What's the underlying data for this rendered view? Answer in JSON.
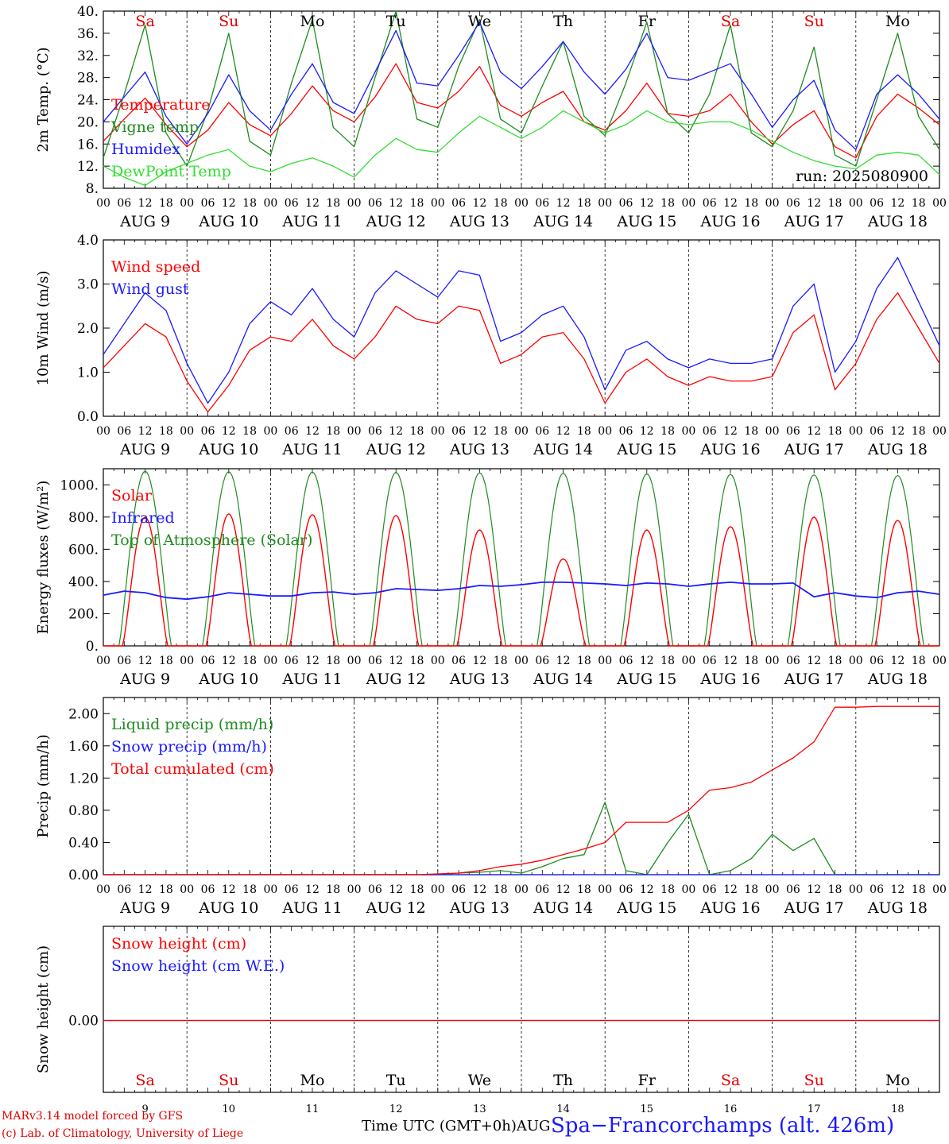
{
  "run": "run: 2025080900",
  "x_axis": {
    "hour_ticks": [
      "00",
      "06",
      "12",
      "18"
    ],
    "end_tick": "00",
    "date_labels": [
      "AUG  9",
      "AUG 10",
      "AUG 11",
      "AUG 12",
      "AUG 13",
      "AUG 14",
      "AUG 15",
      "AUG 16",
      "AUG 17",
      "AUG 18"
    ],
    "days": [
      {
        "label": "Sa",
        "color": "#e00000",
        "num": "9"
      },
      {
        "label": "Su",
        "color": "#e00000",
        "num": "10"
      },
      {
        "label": "Mo",
        "color": "#000000",
        "num": "11"
      },
      {
        "label": "Tu",
        "color": "#000000",
        "num": "12"
      },
      {
        "label": "We",
        "color": "#000000",
        "num": "13"
      },
      {
        "label": "Th",
        "color": "#000000",
        "num": "14"
      },
      {
        "label": "Fr",
        "color": "#000000",
        "num": "15"
      },
      {
        "label": "Sa",
        "color": "#e00000",
        "num": "16"
      },
      {
        "label": "Su",
        "color": "#e00000",
        "num": "17"
      },
      {
        "label": "Mo",
        "color": "#000000",
        "num": "18"
      }
    ],
    "time_label": "Time UTC (GMT+0h)AUG"
  },
  "colors": {
    "red": "#ff0000",
    "green": "#1e8c1e",
    "blue": "#1a1aff",
    "light_green": "#33dd33"
  },
  "chart_data": [
    {
      "type": "line",
      "ylabel": "2m Temp. (°C)",
      "ylim": [
        8,
        40
      ],
      "yticks": [
        "8.",
        "12.",
        "16.",
        "20.",
        "24.",
        "28.",
        "32.",
        "36.",
        "40."
      ],
      "x": [
        0,
        6,
        12,
        18,
        24,
        30,
        36,
        42,
        48,
        54,
        60,
        66,
        72,
        78,
        84,
        90,
        96,
        102,
        108,
        114,
        120,
        126,
        132,
        138,
        144,
        150,
        156,
        162,
        168,
        174,
        180,
        186,
        192,
        198,
        204,
        210,
        216,
        222,
        228,
        234,
        240
      ],
      "series": [
        {
          "name": "Temperature",
          "color": "#ff0000",
          "values": [
            16.5,
            20.5,
            24.3,
            19.5,
            15.5,
            18.5,
            23.5,
            19.5,
            17.5,
            21.5,
            26.5,
            22.0,
            20.0,
            24.5,
            30.5,
            23.5,
            22.5,
            25.5,
            30.0,
            23.0,
            21.0,
            23.5,
            25.5,
            20.0,
            18.5,
            22.0,
            27.0,
            21.5,
            21.0,
            22.0,
            25.0,
            20.0,
            16.0,
            19.5,
            22.0,
            15.5,
            13.5,
            21.0,
            25.0,
            22.5,
            19.5
          ]
        },
        {
          "name": "Vigne temp",
          "color": "#1e8c1e",
          "values": [
            13.5,
            25.0,
            37.5,
            18.0,
            12.0,
            22.0,
            36.0,
            16.5,
            14.0,
            27.0,
            38.5,
            19.0,
            15.5,
            28.0,
            40.0,
            20.5,
            19.0,
            30.0,
            38.5,
            20.5,
            18.0,
            26.5,
            34.5,
            21.0,
            17.5,
            27.0,
            38.0,
            21.5,
            18.0,
            25.0,
            37.5,
            18.0,
            15.5,
            22.0,
            33.5,
            14.0,
            12.0,
            24.0,
            36.0,
            21.0,
            15.0
          ]
        },
        {
          "name": "Humidex",
          "color": "#1a1aff",
          "values": [
            20.0,
            24.5,
            29.0,
            21.0,
            16.0,
            21.5,
            28.5,
            22.0,
            18.5,
            25.0,
            30.5,
            23.5,
            21.5,
            29.0,
            36.5,
            27.0,
            26.5,
            32.0,
            38.0,
            29.0,
            26.0,
            30.0,
            34.5,
            29.0,
            25.0,
            29.5,
            36.0,
            28.0,
            27.5,
            29.0,
            30.5,
            25.0,
            19.0,
            24.0,
            27.5,
            18.5,
            15.0,
            25.0,
            28.5,
            25.0,
            20.5
          ]
        },
        {
          "name": "DewPoint Temp",
          "color": "#33dd33",
          "values": [
            12.0,
            10.0,
            8.5,
            11.0,
            12.5,
            14.0,
            15.0,
            12.0,
            11.0,
            12.5,
            13.5,
            12.0,
            10.0,
            14.0,
            17.0,
            15.0,
            14.5,
            18.0,
            21.0,
            19.0,
            17.0,
            19.0,
            22.0,
            20.0,
            18.0,
            19.5,
            22.0,
            20.0,
            19.5,
            20.0,
            20.0,
            18.5,
            16.5,
            14.5,
            13.0,
            12.0,
            11.5,
            14.0,
            14.5,
            14.0,
            10.5
          ]
        }
      ]
    },
    {
      "type": "line",
      "ylabel": "10m Wind (m/s)",
      "ylim": [
        0,
        4
      ],
      "yticks": [
        "0.0",
        "1.0",
        "2.0",
        "3.0",
        "4.0"
      ],
      "x": [
        0,
        6,
        12,
        18,
        24,
        30,
        36,
        42,
        48,
        54,
        60,
        66,
        72,
        78,
        84,
        90,
        96,
        102,
        108,
        114,
        120,
        126,
        132,
        138,
        144,
        150,
        156,
        162,
        168,
        174,
        180,
        186,
        192,
        198,
        204,
        210,
        216,
        222,
        228,
        234,
        240
      ],
      "series": [
        {
          "name": "Wind speed",
          "color": "#ff0000",
          "values": [
            1.1,
            1.6,
            2.1,
            1.8,
            0.8,
            0.1,
            0.7,
            1.5,
            1.8,
            1.7,
            2.2,
            1.6,
            1.3,
            1.8,
            2.5,
            2.2,
            2.1,
            2.5,
            2.4,
            1.2,
            1.4,
            1.8,
            1.9,
            1.3,
            0.3,
            1.0,
            1.3,
            0.9,
            0.7,
            0.9,
            0.8,
            0.8,
            0.9,
            1.9,
            2.3,
            0.6,
            1.2,
            2.2,
            2.8,
            2.0,
            1.2
          ]
        },
        {
          "name": "Wind gust",
          "color": "#1a1aff",
          "values": [
            1.4,
            2.1,
            2.8,
            2.4,
            1.2,
            0.3,
            1.0,
            2.1,
            2.6,
            2.3,
            2.9,
            2.2,
            1.8,
            2.8,
            3.3,
            3.0,
            2.7,
            3.3,
            3.2,
            1.7,
            1.9,
            2.3,
            2.5,
            1.8,
            0.6,
            1.5,
            1.7,
            1.3,
            1.1,
            1.3,
            1.2,
            1.2,
            1.3,
            2.5,
            3.0,
            1.0,
            1.7,
            2.9,
            3.6,
            2.6,
            1.6
          ]
        }
      ]
    },
    {
      "type": "line",
      "ylabel": "Energy fluxes (W/m²)",
      "ylim": [
        0,
        1100
      ],
      "yticks": [
        "0.",
        "200.",
        "400.",
        "600.",
        "800.",
        "1000."
      ],
      "day_peaks": {
        "Top of Atmosphere (Solar)": [
          1085,
          1082,
          1080,
          1078,
          1075,
          1072,
          1068,
          1065,
          1062,
          1058
        ],
        "Solar": [
          800,
          820,
          815,
          810,
          720,
          540,
          720,
          740,
          800,
          780
        ]
      },
      "series": [
        {
          "name": "Solar",
          "color": "#ff0000"
        },
        {
          "name": "Infrared",
          "color": "#1a1aff",
          "values": [
            315,
            340,
            330,
            300,
            290,
            305,
            330,
            320,
            310,
            310,
            330,
            335,
            320,
            330,
            355,
            350,
            345,
            355,
            375,
            370,
            380,
            395,
            395,
            390,
            385,
            375,
            390,
            385,
            370,
            385,
            395,
            385,
            385,
            390,
            305,
            330,
            310,
            300,
            330,
            340,
            320
          ]
        },
        {
          "name": "Top of Atmosphere (Solar)",
          "color": "#1e8c1e"
        }
      ]
    },
    {
      "type": "line",
      "ylabel": "Precip (mm/h)",
      "ylim": [
        0,
        2.2
      ],
      "yticks": [
        "0.00",
        "0.40",
        "0.80",
        "1.20",
        "1.60",
        "2.00"
      ],
      "x": [
        0,
        6,
        12,
        18,
        24,
        30,
        36,
        42,
        48,
        54,
        60,
        66,
        72,
        78,
        84,
        90,
        96,
        102,
        108,
        114,
        120,
        126,
        132,
        138,
        144,
        150,
        156,
        162,
        168,
        174,
        180,
        186,
        192,
        198,
        204,
        210,
        216,
        222,
        228,
        234,
        240
      ],
      "series": [
        {
          "name": "Liquid precip (mm/h)",
          "color": "#1e8c1e",
          "values": [
            0,
            0,
            0,
            0,
            0,
            0,
            0,
            0,
            0,
            0,
            0,
            0,
            0,
            0,
            0,
            0,
            0,
            0.02,
            0.03,
            0.05,
            0.02,
            0.1,
            0.2,
            0.25,
            0.9,
            0.05,
            0,
            0.4,
            0.75,
            0,
            0.05,
            0.2,
            0.5,
            0.3,
            0.45,
            0,
            0,
            0,
            0,
            0,
            0
          ]
        },
        {
          "name": "Snow precip (mm/h)",
          "color": "#1a1aff",
          "values": [
            0,
            0,
            0,
            0,
            0,
            0,
            0,
            0,
            0,
            0,
            0,
            0,
            0,
            0,
            0,
            0,
            0,
            0,
            0,
            0,
            0,
            0,
            0,
            0,
            0,
            0,
            0,
            0,
            0,
            0,
            0,
            0,
            0,
            0,
            0,
            0,
            0,
            0,
            0,
            0,
            0
          ]
        },
        {
          "name": "Total cumulated (cm)",
          "color": "#ff0000",
          "values": [
            0,
            0,
            0,
            0,
            0,
            0,
            0,
            0,
            0,
            0,
            0,
            0,
            0,
            0,
            0,
            0,
            0.01,
            0.02,
            0.05,
            0.1,
            0.13,
            0.18,
            0.25,
            0.32,
            0.4,
            0.65,
            0.65,
            0.65,
            0.8,
            1.05,
            1.08,
            1.15,
            1.3,
            1.45,
            1.65,
            2.08,
            2.08,
            2.09,
            2.09,
            2.09,
            2.09
          ]
        }
      ]
    },
    {
      "type": "line",
      "ylabel": "Snow height (cm)",
      "yticks": [
        "0.00"
      ],
      "series": [
        {
          "name": "Snow height (cm)",
          "color": "#ff0000",
          "values": [
            0,
            0
          ]
        },
        {
          "name": "Snow height (cm W.E.)",
          "color": "#1a1aff",
          "values": [
            0,
            0
          ]
        }
      ]
    }
  ],
  "footer": {
    "line1": "MARv3.14 model forced by GFS",
    "line2": "(c) Lab. of Climatology, University of Liege",
    "station": "Spa−Francorchamps (alt. 426m)"
  }
}
